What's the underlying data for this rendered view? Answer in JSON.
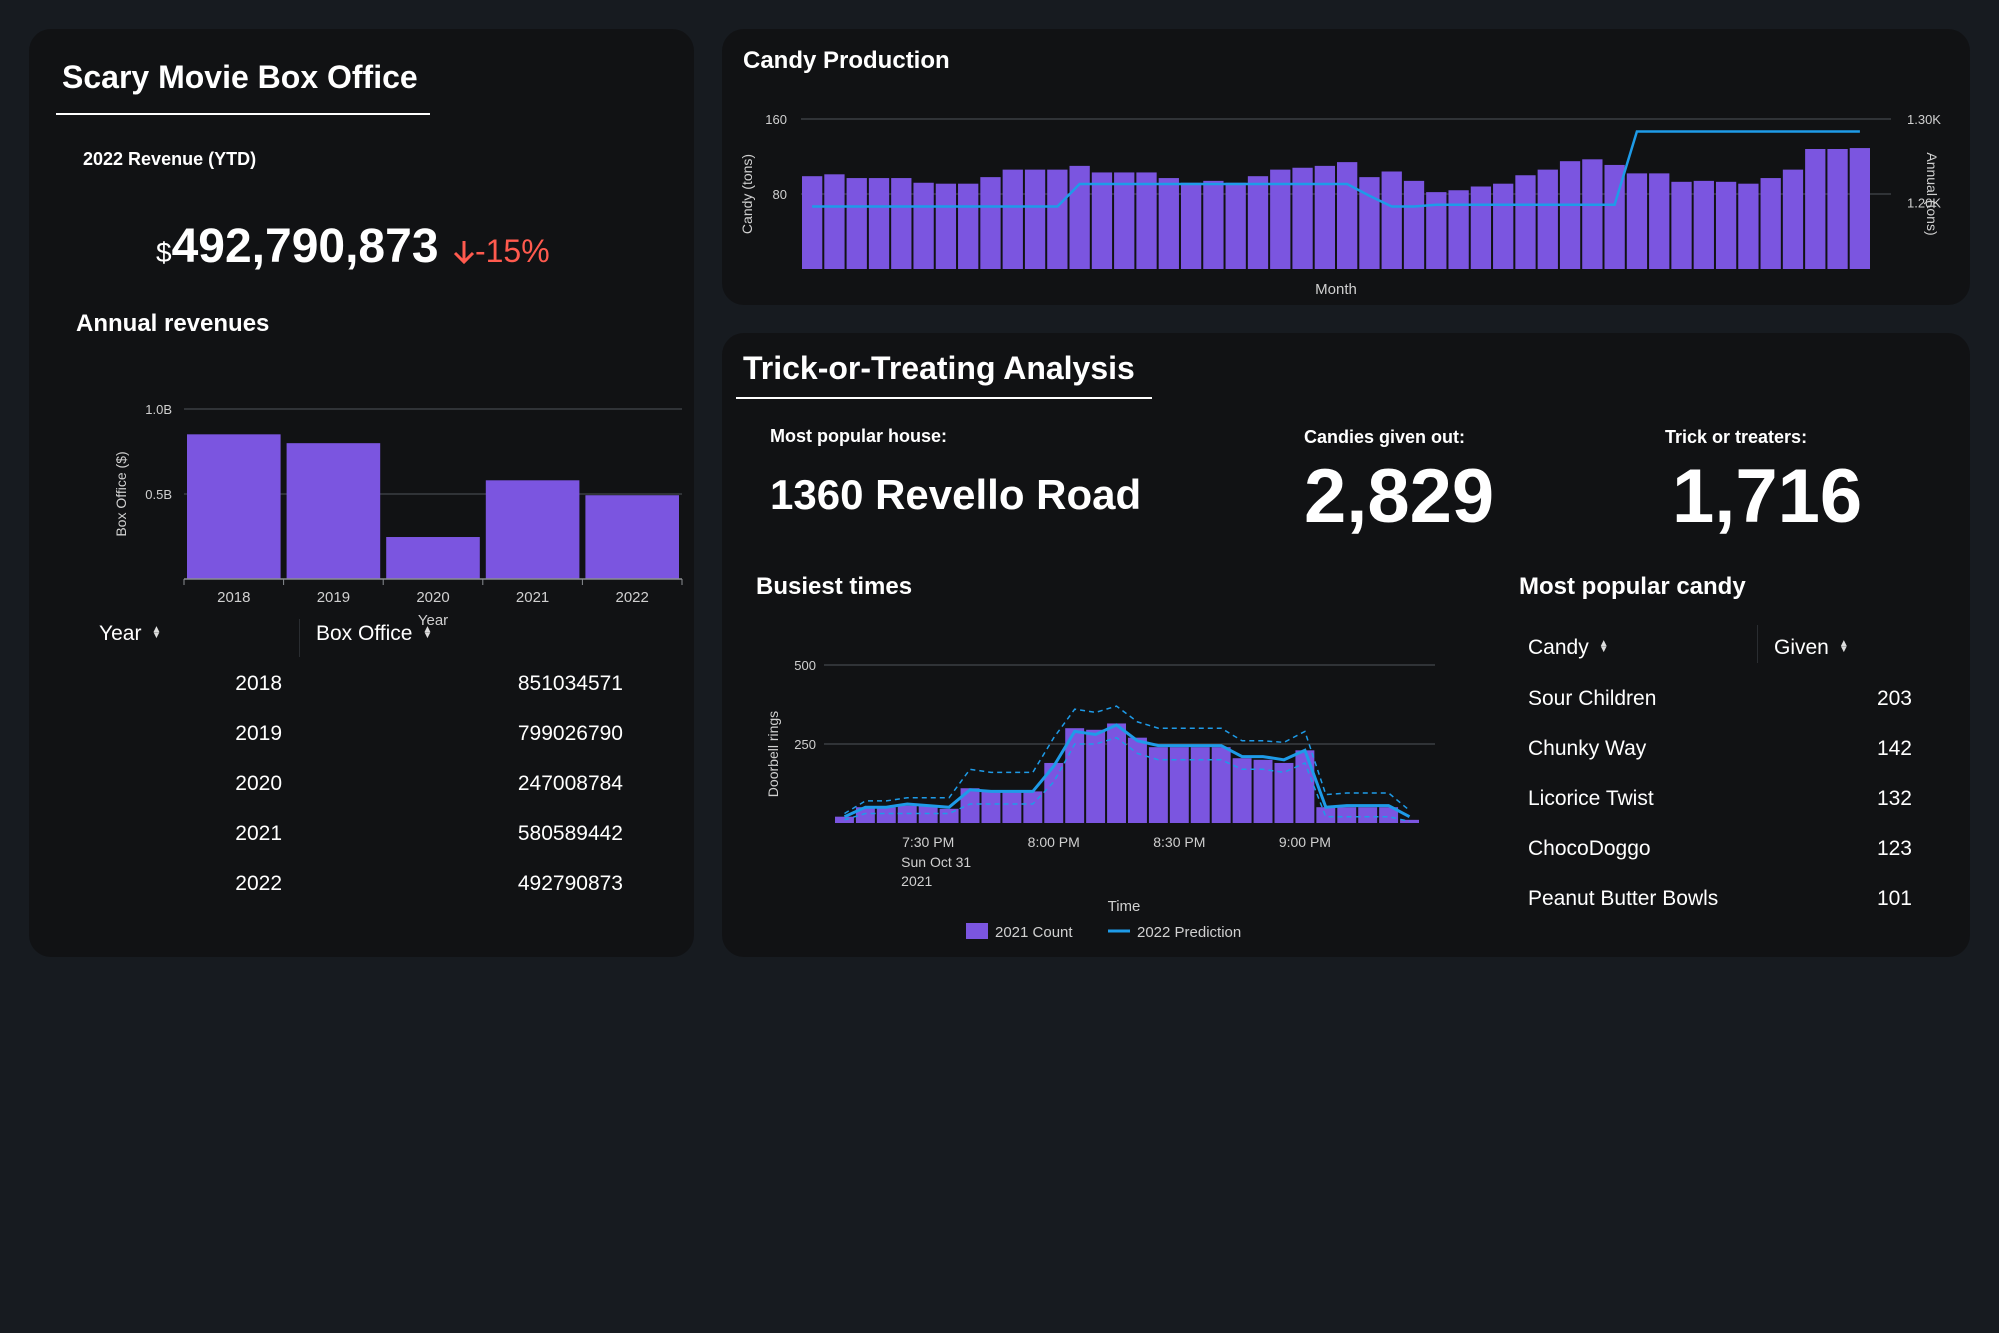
{
  "box_office": {
    "title": "Scary Movie Box Office",
    "revenue_label": "2022 Revenue (YTD)",
    "currency_symbol": "$",
    "revenue_value": "492,790,873",
    "delta_text": "-15%",
    "chart_title": "Annual revenues",
    "table": {
      "headers": [
        "Year",
        "Box Office"
      ],
      "rows": [
        [
          "2018",
          "851034571"
        ],
        [
          "2019",
          "799026790"
        ],
        [
          "2020",
          "247008784"
        ],
        [
          "2021",
          "580589442"
        ],
        [
          "2022",
          "492790873"
        ]
      ]
    }
  },
  "candy_production": {
    "title": "Candy Production"
  },
  "trick": {
    "title": "Trick-or-Treating Analysis",
    "house_label": "Most popular house:",
    "house_value": "1360 Revello Road",
    "candies_label": "Candies given out:",
    "candies_value": "2,829",
    "treaters_label": "Trick or treaters:",
    "treaters_value": "1,716",
    "busiest_title": "Busiest times",
    "popular_title": "Most popular candy",
    "candy_table": {
      "headers": [
        "Candy",
        "Given"
      ],
      "rows": [
        [
          "Sour Children",
          "203"
        ],
        [
          "Chunky Way",
          "142"
        ],
        [
          "Licorice Twist",
          "132"
        ],
        [
          "ChocoDoggo",
          "123"
        ],
        [
          "Peanut Butter Bowls",
          "101"
        ]
      ]
    }
  },
  "colors": {
    "bar": "#7b55e0",
    "line": "#1e9be8",
    "negative": "#ff5a4e",
    "panel": "#111214",
    "background": "#171b20"
  },
  "chart_data": [
    {
      "id": "annual-revenues",
      "type": "bar",
      "categories": [
        "2018",
        "2019",
        "2020",
        "2021",
        "2022"
      ],
      "values": [
        851034571,
        799026790,
        247008784,
        580589442,
        492790873
      ],
      "xlabel": "Year",
      "ylabel": "Box Office ($)",
      "ylim": [
        0,
        1000000000
      ],
      "yticks": [
        {
          "value": 500000000,
          "label": "0.5B"
        },
        {
          "value": 1000000000,
          "label": "1.0B"
        }
      ],
      "grid": true
    },
    {
      "id": "candy-production",
      "type": "bar",
      "xlabel": "Month",
      "ylabel": "Candy (tons)",
      "y2label": "Annual (tons)",
      "ylim": [
        0,
        160
      ],
      "yticks": [
        {
          "value": 80,
          "label": "80"
        },
        {
          "value": 160,
          "label": "160"
        }
      ],
      "y2lim": [
        1120,
        1300
      ],
      "y2ticks": [
        {
          "value": 1200,
          "label": "1.20K"
        },
        {
          "value": 1300,
          "label": "1.30K"
        }
      ],
      "legend": "bottom",
      "series": [
        {
          "name": "candy",
          "type": "bar",
          "values": [
            99,
            101,
            97,
            97,
            97,
            92,
            91,
            91,
            98,
            106,
            106,
            106,
            110,
            103,
            103,
            103,
            97,
            92,
            94,
            92,
            99,
            106,
            108,
            110,
            114,
            98,
            104,
            94,
            82,
            84,
            88,
            91,
            100,
            106,
            115,
            117,
            111,
            102,
            102,
            93,
            94,
            93,
            91,
            97,
            106,
            128,
            128,
            129
          ]
        },
        {
          "name": "annual",
          "type": "line",
          "values": [
            1195,
            1195,
            1195,
            1195,
            1195,
            1195,
            1195,
            1195,
            1195,
            1195,
            1195,
            1195,
            1222,
            1222,
            1222,
            1222,
            1222,
            1222,
            1222,
            1222,
            1222,
            1222,
            1222,
            1222,
            1222,
            1208,
            1195,
            1195,
            1197,
            1197,
            1197,
            1197,
            1197,
            1197,
            1197,
            1197,
            1197,
            1285,
            1285,
            1285,
            1285,
            1285,
            1285,
            1285,
            1285,
            1285,
            1285,
            1285
          ]
        }
      ]
    },
    {
      "id": "busiest-times",
      "type": "bar",
      "xlabel": "Time",
      "ylabel": "Doorbell rings",
      "ylim": [
        0,
        500
      ],
      "yticks": [
        {
          "value": 250,
          "label": "250"
        },
        {
          "value": 500,
          "label": "500"
        }
      ],
      "xticks": [
        {
          "index": 4,
          "label": "7:30 PM",
          "sub": [
            "Sun Oct 31",
            "2021"
          ]
        },
        {
          "index": 10,
          "label": "8:00 PM"
        },
        {
          "index": 16,
          "label": "8:30 PM"
        },
        {
          "index": 22,
          "label": "9:00 PM"
        }
      ],
      "legend": "bottom",
      "series": [
        {
          "name": "2021 Count",
          "type": "bar",
          "values": [
            20,
            50,
            50,
            55,
            55,
            45,
            110,
            100,
            100,
            100,
            190,
            300,
            295,
            315,
            270,
            240,
            240,
            240,
            240,
            205,
            200,
            190,
            230,
            50,
            50,
            50,
            50,
            10
          ]
        },
        {
          "name": "2022 Prediction",
          "type": "line",
          "values": [
            20,
            50,
            50,
            60,
            55,
            50,
            105,
            100,
            100,
            100,
            180,
            290,
            280,
            310,
            260,
            245,
            245,
            245,
            245,
            210,
            210,
            200,
            230,
            50,
            55,
            55,
            55,
            20
          ],
          "upper": [
            30,
            70,
            70,
            80,
            80,
            80,
            170,
            160,
            160,
            160,
            270,
            360,
            350,
            370,
            320,
            300,
            300,
            300,
            300,
            260,
            260,
            255,
            290,
            90,
            95,
            95,
            95,
            40
          ],
          "lower": [
            10,
            30,
            30,
            30,
            30,
            30,
            60,
            60,
            60,
            60,
            130,
            250,
            250,
            270,
            220,
            200,
            200,
            200,
            200,
            170,
            170,
            160,
            190,
            20,
            20,
            20,
            20,
            5
          ]
        }
      ]
    }
  ]
}
